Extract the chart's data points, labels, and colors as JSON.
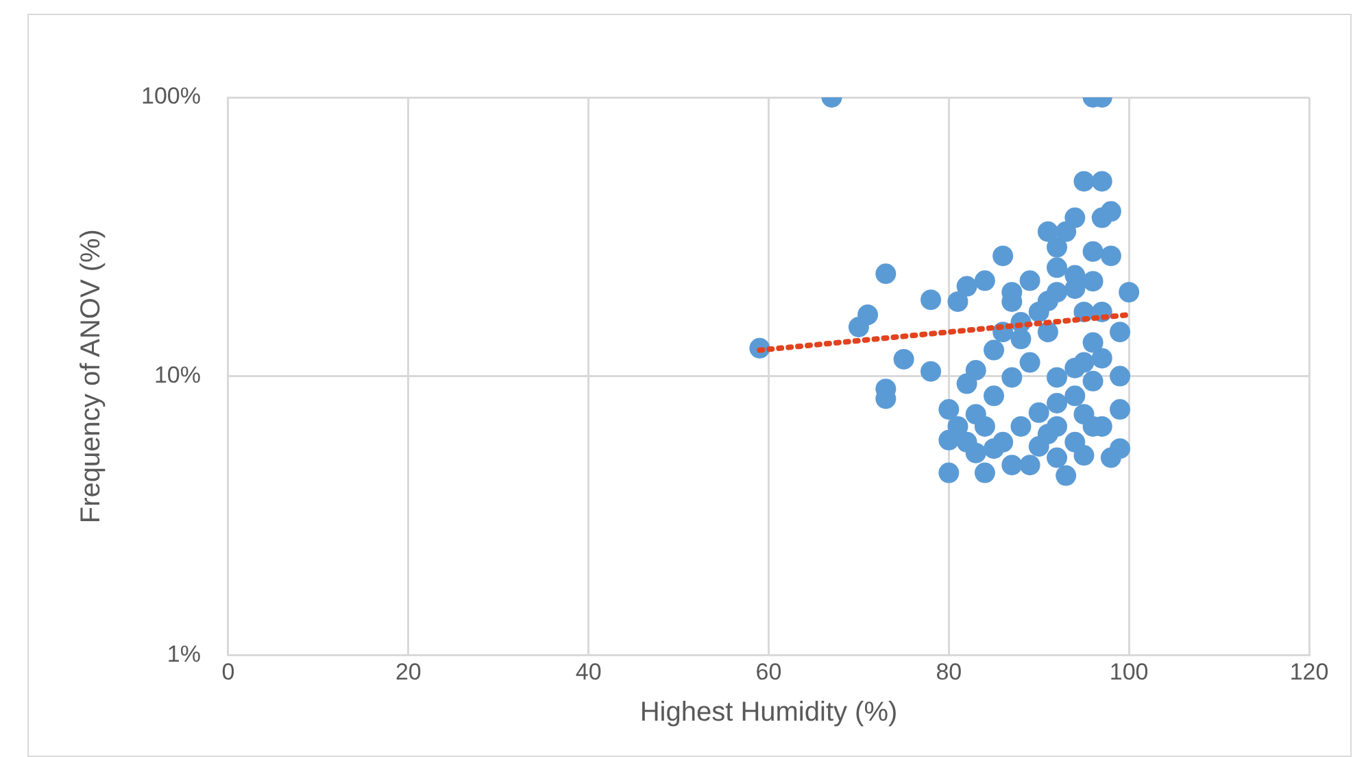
{
  "chart_data": {
    "type": "scatter",
    "xlabel": "Highest Humidity (%)",
    "ylabel": "Frequency of ANOV (%)",
    "log": "y",
    "grid": true,
    "legend": false,
    "marker": "circle",
    "xlim": [
      0,
      120
    ],
    "xticks": [
      0,
      20,
      40,
      60,
      80,
      100,
      120
    ],
    "ylim": [
      1,
      100
    ],
    "yticks": [
      {
        "value": 1,
        "label": "1%"
      },
      {
        "value": 10,
        "label": "10%"
      },
      {
        "value": 100,
        "label": "100%"
      }
    ],
    "series": [
      {
        "color": "#5b9bd5",
        "x": [
          59,
          67,
          96,
          97,
          95,
          97,
          98,
          97,
          94,
          73,
          78,
          86,
          71,
          70,
          75,
          78,
          73,
          73,
          80,
          80,
          80,
          84,
          93,
          91,
          93,
          92,
          92,
          81,
          82,
          84,
          87,
          89,
          100,
          98,
          96,
          99,
          99,
          99,
          99,
          98,
          82,
          83,
          85,
          88,
          91,
          86,
          87,
          91,
          94,
          95,
          96,
          94,
          92,
          89,
          87,
          85,
          83,
          81,
          84,
          86,
          88,
          90,
          92,
          94,
          96,
          94,
          92,
          89,
          87,
          85,
          95,
          97,
          95,
          97,
          97,
          96,
          94,
          92,
          90,
          88,
          96,
          95,
          92,
          91,
          90,
          83,
          82
        ],
        "values": [
          12.6,
          100,
          100,
          100,
          50,
          50,
          39,
          37,
          37,
          23.3,
          18.8,
          27,
          16.6,
          15,
          11.5,
          10.4,
          9,
          8.3,
          7.6,
          5.9,
          4.5,
          4.5,
          4.4,
          33,
          33,
          29,
          24.5,
          18.5,
          21,
          22,
          20,
          22,
          20,
          27,
          28,
          14.4,
          10,
          7.6,
          5.5,
          5.1,
          9.4,
          10.5,
          12.4,
          13.6,
          14.4,
          14.4,
          18.5,
          18.6,
          20.6,
          17,
          13.2,
          10.7,
          9.9,
          11.2,
          9.9,
          8.5,
          7.3,
          6.6,
          6.6,
          5.8,
          6.6,
          7.4,
          8,
          8.5,
          6.6,
          5.8,
          5.1,
          4.8,
          4.8,
          5.5,
          5.2,
          6.6,
          11.2,
          11.6,
          17,
          21.9,
          23,
          20,
          17,
          15.6,
          9.6,
          7.3,
          6.6,
          6.2,
          5.6,
          5.3,
          5.8
        ]
      },
      {
        "type": "line",
        "color": "#e2431e",
        "x": [
          59,
          100
        ],
        "values": [
          12.4,
          16.6
        ],
        "line_style": "dotted",
        "marker": "none"
      }
    ]
  }
}
